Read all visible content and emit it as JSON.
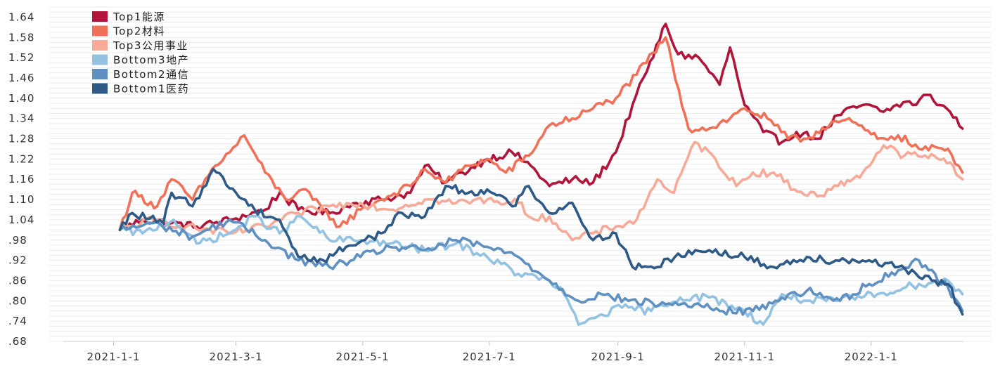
{
  "chart_data": {
    "type": "line",
    "title": "",
    "xlabel": "",
    "ylabel": "",
    "xlim": [
      "2020-12-01",
      "2022-02-28"
    ],
    "ylim": [
      0.68,
      1.67
    ],
    "grid": true,
    "legend_position": "top-left",
    "x_ticks": [
      "2021-1-1",
      "2021-3-1",
      "2021-5-1",
      "2021-7-1",
      "2021-9-1",
      "2021-11-1",
      "2022-1-1"
    ],
    "y_ticks": [
      ".68",
      ".74",
      ".80",
      ".86",
      ".92",
      ".98",
      "1.04",
      "1.10",
      "1.16",
      "1.22",
      "1.28",
      "1.34",
      "1.40",
      "1.46",
      "1.52",
      "1.58",
      "1.64"
    ],
    "series": [
      {
        "name": "Top1能源",
        "color": "#B0153A",
        "points": [
          [
            "2021-01-04",
            1.01
          ],
          [
            "2021-01-15",
            1.04
          ],
          [
            "2021-01-29",
            1.03
          ],
          [
            "2021-02-10",
            1.02
          ],
          [
            "2021-02-26",
            1.04
          ],
          [
            "2021-03-15",
            1.07
          ],
          [
            "2021-03-22",
            1.12
          ],
          [
            "2021-03-31",
            1.07
          ],
          [
            "2021-04-15",
            1.06
          ],
          [
            "2021-04-28",
            1.09
          ],
          [
            "2021-05-10",
            1.1
          ],
          [
            "2021-05-24",
            1.12
          ],
          [
            "2021-05-31",
            1.2
          ],
          [
            "2021-06-10",
            1.15
          ],
          [
            "2021-06-18",
            1.18
          ],
          [
            "2021-06-30",
            1.22
          ],
          [
            "2021-07-12",
            1.24
          ],
          [
            "2021-07-21",
            1.2
          ],
          [
            "2021-07-30",
            1.14
          ],
          [
            "2021-08-10",
            1.16
          ],
          [
            "2021-08-20",
            1.15
          ],
          [
            "2021-08-31",
            1.24
          ],
          [
            "2021-09-08",
            1.38
          ],
          [
            "2021-09-15",
            1.48
          ],
          [
            "2021-09-24",
            1.62
          ],
          [
            "2021-09-30",
            1.53
          ],
          [
            "2021-10-10",
            1.52
          ],
          [
            "2021-10-20",
            1.44
          ],
          [
            "2021-10-25",
            1.55
          ],
          [
            "2021-11-01",
            1.38
          ],
          [
            "2021-11-10",
            1.3
          ],
          [
            "2021-11-19",
            1.27
          ],
          [
            "2021-11-26",
            1.3
          ],
          [
            "2021-12-06",
            1.28
          ],
          [
            "2021-12-16",
            1.35
          ],
          [
            "2021-12-28",
            1.38
          ],
          [
            "2022-01-07",
            1.36
          ],
          [
            "2022-01-18",
            1.39
          ],
          [
            "2022-01-21",
            1.38
          ],
          [
            "2022-01-28",
            1.41
          ],
          [
            "2022-02-08",
            1.36
          ],
          [
            "2022-02-14",
            1.31
          ]
        ]
      },
      {
        "name": "Top2材料",
        "color": "#F07058",
        "points": [
          [
            "2021-01-04",
            1.01
          ],
          [
            "2021-01-10",
            1.12
          ],
          [
            "2021-01-22",
            1.08
          ],
          [
            "2021-01-29",
            1.16
          ],
          [
            "2021-02-08",
            1.1
          ],
          [
            "2021-02-19",
            1.2
          ],
          [
            "2021-02-26",
            1.24
          ],
          [
            "2021-03-05",
            1.29
          ],
          [
            "2021-03-15",
            1.18
          ],
          [
            "2021-03-25",
            1.1
          ],
          [
            "2021-04-02",
            1.13
          ],
          [
            "2021-04-12",
            1.07
          ],
          [
            "2021-04-20",
            1.02
          ],
          [
            "2021-04-30",
            1.07
          ],
          [
            "2021-05-10",
            1.1
          ],
          [
            "2021-05-24",
            1.14
          ],
          [
            "2021-05-31",
            1.19
          ],
          [
            "2021-06-10",
            1.15
          ],
          [
            "2021-06-21",
            1.2
          ],
          [
            "2021-06-30",
            1.22
          ],
          [
            "2021-07-09",
            1.18
          ],
          [
            "2021-07-20",
            1.23
          ],
          [
            "2021-07-30",
            1.32
          ],
          [
            "2021-08-10",
            1.34
          ],
          [
            "2021-08-20",
            1.37
          ],
          [
            "2021-08-31",
            1.4
          ],
          [
            "2021-09-10",
            1.47
          ],
          [
            "2021-09-24",
            1.58
          ],
          [
            "2021-10-05",
            1.31
          ],
          [
            "2021-10-15",
            1.31
          ],
          [
            "2021-10-25",
            1.34
          ],
          [
            "2021-11-01",
            1.37
          ],
          [
            "2021-11-12",
            1.34
          ],
          [
            "2021-11-22",
            1.28
          ],
          [
            "2021-12-01",
            1.28
          ],
          [
            "2021-12-13",
            1.33
          ],
          [
            "2021-12-23",
            1.33
          ],
          [
            "2022-01-04",
            1.28
          ],
          [
            "2022-01-14",
            1.29
          ],
          [
            "2022-01-24",
            1.25
          ],
          [
            "2022-02-07",
            1.25
          ],
          [
            "2022-02-14",
            1.18
          ]
        ]
      },
      {
        "name": "Top3公用事业",
        "color": "#F8AA98",
        "points": [
          [
            "2021-01-04",
            1.01
          ],
          [
            "2021-01-20",
            1.04
          ],
          [
            "2021-02-05",
            1.02
          ],
          [
            "2021-02-26",
            1.0
          ],
          [
            "2021-03-15",
            1.02
          ],
          [
            "2021-03-31",
            1.06
          ],
          [
            "2021-04-15",
            1.08
          ],
          [
            "2021-04-30",
            1.09
          ],
          [
            "2021-05-14",
            1.07
          ],
          [
            "2021-05-31",
            1.1
          ],
          [
            "2021-06-15",
            1.09
          ],
          [
            "2021-06-30",
            1.1
          ],
          [
            "2021-07-15",
            1.09
          ],
          [
            "2021-07-23",
            1.04
          ],
          [
            "2021-07-30",
            1.05
          ],
          [
            "2021-08-10",
            0.98
          ],
          [
            "2021-08-20",
            1.0
          ],
          [
            "2021-08-31",
            1.02
          ],
          [
            "2021-09-10",
            1.04
          ],
          [
            "2021-09-20",
            1.16
          ],
          [
            "2021-09-28",
            1.12
          ],
          [
            "2021-10-08",
            1.27
          ],
          [
            "2021-10-18",
            1.22
          ],
          [
            "2021-10-28",
            1.14
          ],
          [
            "2021-11-05",
            1.18
          ],
          [
            "2021-11-15",
            1.18
          ],
          [
            "2021-11-25",
            1.13
          ],
          [
            "2021-12-06",
            1.11
          ],
          [
            "2021-12-16",
            1.14
          ],
          [
            "2021-12-28",
            1.18
          ],
          [
            "2022-01-07",
            1.26
          ],
          [
            "2022-01-17",
            1.23
          ],
          [
            "2022-01-27",
            1.23
          ],
          [
            "2022-02-08",
            1.21
          ],
          [
            "2022-02-14",
            1.16
          ]
        ]
      },
      {
        "name": "Bottom3地产",
        "color": "#93C2E3",
        "points": [
          [
            "2021-01-04",
            1.01
          ],
          [
            "2021-01-15",
            1.0
          ],
          [
            "2021-01-30",
            1.04
          ],
          [
            "2021-02-10",
            0.97
          ],
          [
            "2021-02-26",
            1.0
          ],
          [
            "2021-03-10",
            1.05
          ],
          [
            "2021-03-22",
            1.0
          ],
          [
            "2021-04-01",
            1.05
          ],
          [
            "2021-04-15",
            0.98
          ],
          [
            "2021-04-30",
            0.98
          ],
          [
            "2021-05-14",
            0.97
          ],
          [
            "2021-05-31",
            0.95
          ],
          [
            "2021-06-15",
            0.97
          ],
          [
            "2021-06-30",
            0.93
          ],
          [
            "2021-07-15",
            0.88
          ],
          [
            "2021-07-30",
            0.86
          ],
          [
            "2021-08-06",
            0.82
          ],
          [
            "2021-08-13",
            0.73
          ],
          [
            "2021-08-24",
            0.76
          ],
          [
            "2021-09-03",
            0.78
          ],
          [
            "2021-09-17",
            0.77
          ],
          [
            "2021-10-01",
            0.81
          ],
          [
            "2021-10-15",
            0.81
          ],
          [
            "2021-11-01",
            0.77
          ],
          [
            "2021-11-10",
            0.73
          ],
          [
            "2021-11-19",
            0.82
          ],
          [
            "2021-12-01",
            0.8
          ],
          [
            "2021-12-15",
            0.8
          ],
          [
            "2022-01-04",
            0.82
          ],
          [
            "2022-01-24",
            0.85
          ],
          [
            "2022-02-07",
            0.86
          ],
          [
            "2022-02-14",
            0.82
          ]
        ]
      },
      {
        "name": "Bottom2通信",
        "color": "#5E90C2",
        "points": [
          [
            "2021-01-04",
            1.01
          ],
          [
            "2021-01-20",
            1.03
          ],
          [
            "2021-02-08",
            0.99
          ],
          [
            "2021-02-26",
            1.04
          ],
          [
            "2021-03-15",
            0.98
          ],
          [
            "2021-03-31",
            0.92
          ],
          [
            "2021-04-15",
            0.9
          ],
          [
            "2021-04-30",
            0.93
          ],
          [
            "2021-05-14",
            0.96
          ],
          [
            "2021-05-31",
            0.95
          ],
          [
            "2021-06-15",
            0.98
          ],
          [
            "2021-06-30",
            0.96
          ],
          [
            "2021-07-15",
            0.93
          ],
          [
            "2021-07-30",
            0.86
          ],
          [
            "2021-08-13",
            0.8
          ],
          [
            "2021-08-24",
            0.82
          ],
          [
            "2021-09-06",
            0.8
          ],
          [
            "2021-09-24",
            0.79
          ],
          [
            "2021-10-08",
            0.79
          ],
          [
            "2021-10-20",
            0.77
          ],
          [
            "2021-11-05",
            0.77
          ],
          [
            "2021-11-19",
            0.81
          ],
          [
            "2021-12-01",
            0.83
          ],
          [
            "2021-12-17",
            0.8
          ],
          [
            "2021-12-31",
            0.85
          ],
          [
            "2022-01-14",
            0.89
          ],
          [
            "2022-01-24",
            0.92
          ],
          [
            "2022-02-07",
            0.84
          ],
          [
            "2022-02-14",
            0.77
          ]
        ]
      },
      {
        "name": "Bottom1医药",
        "color": "#2E5A88",
        "points": [
          [
            "2021-01-04",
            1.01
          ],
          [
            "2021-01-10",
            1.06
          ],
          [
            "2021-01-25",
            1.03
          ],
          [
            "2021-01-29",
            1.12
          ],
          [
            "2021-02-08",
            1.08
          ],
          [
            "2021-02-18",
            1.19
          ],
          [
            "2021-03-01",
            1.12
          ],
          [
            "2021-03-10",
            1.07
          ],
          [
            "2021-03-22",
            1.04
          ],
          [
            "2021-03-31",
            0.93
          ],
          [
            "2021-04-12",
            0.92
          ],
          [
            "2021-04-23",
            0.96
          ],
          [
            "2021-05-10",
            1.0
          ],
          [
            "2021-05-20",
            1.06
          ],
          [
            "2021-05-31",
            1.05
          ],
          [
            "2021-06-10",
            1.14
          ],
          [
            "2021-06-21",
            1.12
          ],
          [
            "2021-06-30",
            1.13
          ],
          [
            "2021-07-12",
            1.08
          ],
          [
            "2021-07-20",
            1.14
          ],
          [
            "2021-07-30",
            1.06
          ],
          [
            "2021-08-10",
            1.09
          ],
          [
            "2021-08-20",
            0.98
          ],
          [
            "2021-08-31",
            1.0
          ],
          [
            "2021-09-08",
            0.9
          ],
          [
            "2021-09-20",
            0.9
          ],
          [
            "2021-09-30",
            0.94
          ],
          [
            "2021-10-15",
            0.95
          ],
          [
            "2021-11-01",
            0.93
          ],
          [
            "2021-11-15",
            0.9
          ],
          [
            "2021-12-01",
            0.93
          ],
          [
            "2021-12-15",
            0.92
          ],
          [
            "2021-12-31",
            0.92
          ],
          [
            "2022-01-14",
            0.9
          ],
          [
            "2022-01-24",
            0.87
          ],
          [
            "2022-02-07",
            0.85
          ],
          [
            "2022-02-14",
            0.76
          ]
        ]
      }
    ]
  }
}
